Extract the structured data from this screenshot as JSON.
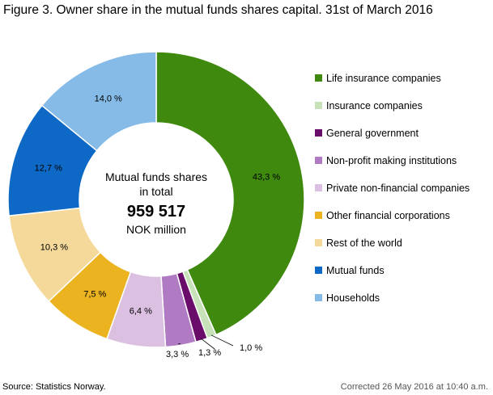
{
  "title": "Figure 3. Owner share in the mutual funds shares capital. 31st of March 2016",
  "source": "Source: Statistics Norway.",
  "corrected": "Corrected 26 May 2016 at 10:40 a.m.",
  "center": {
    "line1": "Mutual funds shares",
    "line2": "in total",
    "value": "959 517",
    "unit": "NOK million"
  },
  "chart_data": {
    "type": "pie",
    "donut": true,
    "legend_placement": "right",
    "slices": [
      {
        "name": "Life insurance companies",
        "value": 43.3,
        "label": "43,3 %",
        "color": "#3f8a0e"
      },
      {
        "name": "Insurance companies",
        "value": 1.0,
        "label": "1,0 %",
        "color": "#c7e2b8"
      },
      {
        "name": "General government",
        "value": 1.3,
        "label": "1,3 %",
        "color": "#6a0d6a"
      },
      {
        "name": "Non-profit making institutions",
        "value": 3.3,
        "label": "3,3 %",
        "color": "#b17bc4"
      },
      {
        "name": "Private non-financial companies",
        "value": 6.4,
        "label": "6,4 %",
        "color": "#dcc0e2"
      },
      {
        "name": "Other financial corporations",
        "value": 7.5,
        "label": "7,5 %",
        "color": "#ecb321"
      },
      {
        "name": "Rest of the world",
        "value": 10.3,
        "label": "10,3 %",
        "color": "#f4d99a"
      },
      {
        "name": "Mutual funds",
        "value": 12.7,
        "label": "12,7 %",
        "color": "#0d69c5"
      },
      {
        "name": "Households",
        "value": 14.0,
        "label": "14,0 %",
        "color": "#86bbe7"
      }
    ]
  }
}
